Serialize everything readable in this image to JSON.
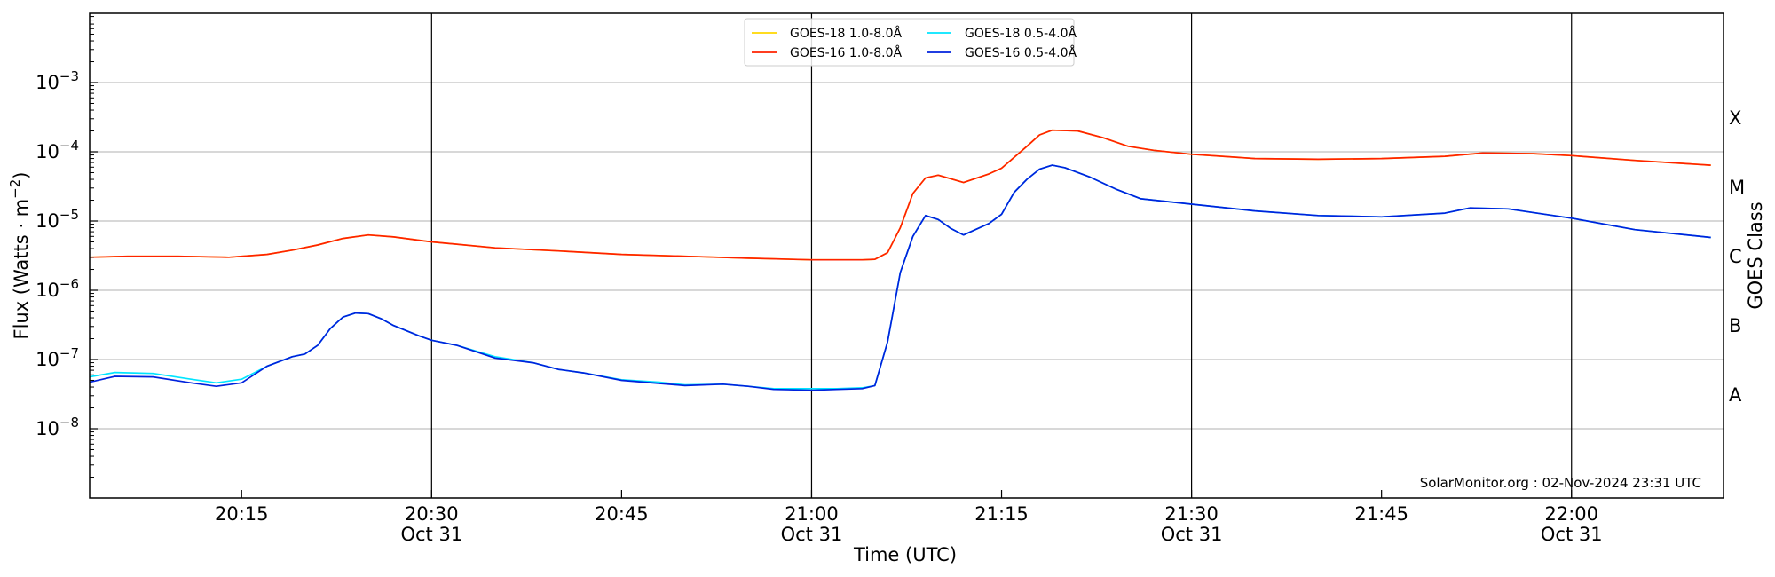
{
  "chart_data": {
    "type": "line",
    "xlabel": "Time (UTC)",
    "ylabel": "Flux (Watts · m⁻²)",
    "y2label": "GOES Class",
    "yscale": "log",
    "ylim": [
      1e-09,
      0.01
    ],
    "xlim": [
      "20:03",
      "22:12"
    ],
    "x_ticks": [
      {
        "time": "20:15",
        "date": ""
      },
      {
        "time": "20:30",
        "date": "Oct 31"
      },
      {
        "time": "20:45",
        "date": ""
      },
      {
        "time": "21:00",
        "date": "Oct 31"
      },
      {
        "time": "21:15",
        "date": ""
      },
      {
        "time": "21:30",
        "date": "Oct 31"
      },
      {
        "time": "21:45",
        "date": ""
      },
      {
        "time": "22:00",
        "date": "Oct 31"
      }
    ],
    "y_ticks": [
      {
        "value": 1e-08,
        "base": "10",
        "exp": "−8"
      },
      {
        "value": 1e-07,
        "base": "10",
        "exp": "−7"
      },
      {
        "value": 1e-06,
        "base": "10",
        "exp": "−6"
      },
      {
        "value": 1e-05,
        "base": "10",
        "exp": "−5"
      },
      {
        "value": 0.0001,
        "base": "10",
        "exp": "−4"
      },
      {
        "value": 0.001,
        "base": "10",
        "exp": "−3"
      }
    ],
    "goes_classes": [
      {
        "label": "A",
        "value": 3.16e-08
      },
      {
        "label": "B",
        "value": 3.16e-07
      },
      {
        "label": "C",
        "value": 3.16e-06
      },
      {
        "label": "M",
        "value": 3.16e-05
      },
      {
        "label": "X",
        "value": 0.000316
      }
    ],
    "grid": true,
    "legend_position": "top-center",
    "annotation": "SolarMonitor.org : 02-Nov-2024 23:31 UTC",
    "series": [
      {
        "name": "GOES-18 1.0-8.0Å",
        "color": "#ffd700",
        "points": [
          [
            "20:03",
            3e-06
          ],
          [
            "20:06",
            3.1e-06
          ],
          [
            "20:10",
            3.1e-06
          ],
          [
            "20:14",
            3e-06
          ],
          [
            "20:17",
            3.3e-06
          ],
          [
            "20:19",
            3.8e-06
          ],
          [
            "20:21",
            4.5e-06
          ],
          [
            "20:23",
            5.6e-06
          ],
          [
            "20:25",
            6.3e-06
          ],
          [
            "20:27",
            5.9e-06
          ],
          [
            "20:30",
            5e-06
          ],
          [
            "20:35",
            4.1e-06
          ],
          [
            "20:40",
            3.7e-06
          ],
          [
            "20:45",
            3.3e-06
          ],
          [
            "20:50",
            3.1e-06
          ],
          [
            "20:55",
            2.9e-06
          ],
          [
            "21:00",
            2.75e-06
          ],
          [
            "21:04",
            2.75e-06
          ],
          [
            "21:05",
            2.8e-06
          ],
          [
            "21:06",
            3.5e-06
          ],
          [
            "21:07",
            8e-06
          ],
          [
            "21:08",
            2.5e-05
          ],
          [
            "21:09",
            4.2e-05
          ],
          [
            "21:10",
            4.6e-05
          ],
          [
            "21:12",
            3.6e-05
          ],
          [
            "21:14",
            4.8e-05
          ],
          [
            "21:15",
            5.8e-05
          ],
          [
            "21:17",
            0.00012
          ],
          [
            "21:18",
            0.000175
          ],
          [
            "21:19",
            0.000205
          ],
          [
            "21:21",
            0.0002
          ],
          [
            "21:23",
            0.00016
          ],
          [
            "21:25",
            0.00012
          ],
          [
            "21:27",
            0.000105
          ],
          [
            "21:30",
            9.2e-05
          ],
          [
            "21:35",
            8e-05
          ],
          [
            "21:40",
            7.8e-05
          ],
          [
            "21:45",
            8e-05
          ],
          [
            "21:50",
            8.6e-05
          ],
          [
            "21:53",
            9.6e-05
          ],
          [
            "21:57",
            9.4e-05
          ],
          [
            "22:00",
            8.8e-05
          ],
          [
            "22:05",
            7.5e-05
          ],
          [
            "22:11",
            6.4e-05
          ]
        ]
      },
      {
        "name": "GOES-16 1.0-8.0Å",
        "color": "#ff2200",
        "points": [
          [
            "20:03",
            3e-06
          ],
          [
            "20:06",
            3.1e-06
          ],
          [
            "20:10",
            3.1e-06
          ],
          [
            "20:14",
            3e-06
          ],
          [
            "20:17",
            3.3e-06
          ],
          [
            "20:19",
            3.8e-06
          ],
          [
            "20:21",
            4.5e-06
          ],
          [
            "20:23",
            5.6e-06
          ],
          [
            "20:25",
            6.3e-06
          ],
          [
            "20:27",
            5.9e-06
          ],
          [
            "20:30",
            5e-06
          ],
          [
            "20:35",
            4.1e-06
          ],
          [
            "20:40",
            3.7e-06
          ],
          [
            "20:45",
            3.3e-06
          ],
          [
            "20:50",
            3.1e-06
          ],
          [
            "20:55",
            2.9e-06
          ],
          [
            "21:00",
            2.75e-06
          ],
          [
            "21:04",
            2.75e-06
          ],
          [
            "21:05",
            2.8e-06
          ],
          [
            "21:06",
            3.5e-06
          ],
          [
            "21:07",
            8e-06
          ],
          [
            "21:08",
            2.5e-05
          ],
          [
            "21:09",
            4.2e-05
          ],
          [
            "21:10",
            4.6e-05
          ],
          [
            "21:12",
            3.6e-05
          ],
          [
            "21:14",
            4.8e-05
          ],
          [
            "21:15",
            5.8e-05
          ],
          [
            "21:17",
            0.00012
          ],
          [
            "21:18",
            0.000175
          ],
          [
            "21:19",
            0.000205
          ],
          [
            "21:21",
            0.0002
          ],
          [
            "21:23",
            0.00016
          ],
          [
            "21:25",
            0.00012
          ],
          [
            "21:27",
            0.000105
          ],
          [
            "21:30",
            9.2e-05
          ],
          [
            "21:35",
            8e-05
          ],
          [
            "21:40",
            7.8e-05
          ],
          [
            "21:45",
            8e-05
          ],
          [
            "21:50",
            8.6e-05
          ],
          [
            "21:53",
            9.6e-05
          ],
          [
            "21:57",
            9.4e-05
          ],
          [
            "22:00",
            8.8e-05
          ],
          [
            "22:05",
            7.5e-05
          ],
          [
            "22:11",
            6.4e-05
          ]
        ]
      },
      {
        "name": "GOES-18 0.5-4.0Å",
        "color": "#00e5ff",
        "points": [
          [
            "20:03",
            5.6e-08
          ],
          [
            "20:05",
            6.5e-08
          ],
          [
            "20:08",
            6.3e-08
          ],
          [
            "20:11",
            5.2e-08
          ],
          [
            "20:13",
            4.6e-08
          ],
          [
            "20:15",
            5.2e-08
          ],
          [
            "20:17",
            8e-08
          ],
          [
            "20:19",
            1.1e-07
          ],
          [
            "20:20",
            1.2e-07
          ],
          [
            "20:21",
            1.6e-07
          ],
          [
            "20:22",
            2.8e-07
          ],
          [
            "20:23",
            4.1e-07
          ],
          [
            "20:24",
            4.7e-07
          ],
          [
            "20:25",
            4.6e-07
          ],
          [
            "20:26",
            3.9e-07
          ],
          [
            "20:27",
            3.1e-07
          ],
          [
            "20:29",
            2.2e-07
          ],
          [
            "20:30",
            1.9e-07
          ],
          [
            "20:32",
            1.6e-07
          ],
          [
            "20:35",
            1.1e-07
          ],
          [
            "20:38",
            9e-08
          ],
          [
            "20:40",
            7.2e-08
          ],
          [
            "20:42",
            6.4e-08
          ],
          [
            "20:45",
            5.1e-08
          ],
          [
            "20:48",
            4.7e-08
          ],
          [
            "20:50",
            4.3e-08
          ],
          [
            "20:53",
            4.4e-08
          ],
          [
            "20:55",
            4.1e-08
          ],
          [
            "20:57",
            3.8e-08
          ],
          [
            "21:00",
            3.8e-08
          ],
          [
            "21:02",
            3.8e-08
          ],
          [
            "21:04",
            3.9e-08
          ],
          [
            "21:05",
            4.2e-08
          ],
          [
            "21:06",
            1.8e-07
          ],
          [
            "21:07",
            1.8e-06
          ],
          [
            "21:08",
            6e-06
          ],
          [
            "21:09",
            1.2e-05
          ],
          [
            "21:10",
            1.05e-05
          ],
          [
            "21:11",
            7.8e-06
          ],
          [
            "21:12",
            6.3e-06
          ],
          [
            "21:14",
            9.2e-06
          ],
          [
            "21:15",
            1.25e-05
          ],
          [
            "21:16",
            2.6e-05
          ],
          [
            "21:17",
            4e-05
          ],
          [
            "21:18",
            5.6e-05
          ],
          [
            "21:19",
            6.4e-05
          ],
          [
            "21:20",
            5.9e-05
          ],
          [
            "21:22",
            4.3e-05
          ],
          [
            "21:24",
            2.9e-05
          ],
          [
            "21:26",
            2.1e-05
          ],
          [
            "21:30",
            1.75e-05
          ],
          [
            "21:35",
            1.4e-05
          ],
          [
            "21:40",
            1.2e-05
          ],
          [
            "21:45",
            1.15e-05
          ],
          [
            "21:50",
            1.3e-05
          ],
          [
            "21:52",
            1.55e-05
          ],
          [
            "21:55",
            1.5e-05
          ],
          [
            "22:00",
            1.1e-05
          ],
          [
            "22:05",
            7.5e-06
          ],
          [
            "22:11",
            5.8e-06
          ]
        ]
      },
      {
        "name": "GOES-16 0.5-4.0Å",
        "color": "#0022dd",
        "points": [
          [
            "20:03",
            4.7e-08
          ],
          [
            "20:05",
            5.7e-08
          ],
          [
            "20:08",
            5.6e-08
          ],
          [
            "20:11",
            4.6e-08
          ],
          [
            "20:13",
            4.1e-08
          ],
          [
            "20:15",
            4.6e-08
          ],
          [
            "20:17",
            8e-08
          ],
          [
            "20:19",
            1.1e-07
          ],
          [
            "20:20",
            1.2e-07
          ],
          [
            "20:21",
            1.6e-07
          ],
          [
            "20:22",
            2.8e-07
          ],
          [
            "20:23",
            4.1e-07
          ],
          [
            "20:24",
            4.7e-07
          ],
          [
            "20:25",
            4.6e-07
          ],
          [
            "20:26",
            3.9e-07
          ],
          [
            "20:27",
            3.1e-07
          ],
          [
            "20:29",
            2.2e-07
          ],
          [
            "20:30",
            1.9e-07
          ],
          [
            "20:32",
            1.6e-07
          ],
          [
            "20:35",
            1.05e-07
          ],
          [
            "20:38",
            9e-08
          ],
          [
            "20:40",
            7.2e-08
          ],
          [
            "20:42",
            6.4e-08
          ],
          [
            "20:45",
            5e-08
          ],
          [
            "20:48",
            4.5e-08
          ],
          [
            "20:50",
            4.2e-08
          ],
          [
            "20:53",
            4.4e-08
          ],
          [
            "20:55",
            4.1e-08
          ],
          [
            "20:57",
            3.7e-08
          ],
          [
            "21:00",
            3.6e-08
          ],
          [
            "21:02",
            3.7e-08
          ],
          [
            "21:04",
            3.8e-08
          ],
          [
            "21:05",
            4.2e-08
          ],
          [
            "21:06",
            1.8e-07
          ],
          [
            "21:07",
            1.8e-06
          ],
          [
            "21:08",
            6e-06
          ],
          [
            "21:09",
            1.2e-05
          ],
          [
            "21:10",
            1.05e-05
          ],
          [
            "21:11",
            7.8e-06
          ],
          [
            "21:12",
            6.3e-06
          ],
          [
            "21:14",
            9.2e-06
          ],
          [
            "21:15",
            1.25e-05
          ],
          [
            "21:16",
            2.6e-05
          ],
          [
            "21:17",
            4e-05
          ],
          [
            "21:18",
            5.6e-05
          ],
          [
            "21:19",
            6.4e-05
          ],
          [
            "21:20",
            5.9e-05
          ],
          [
            "21:22",
            4.3e-05
          ],
          [
            "21:24",
            2.9e-05
          ],
          [
            "21:26",
            2.1e-05
          ],
          [
            "21:30",
            1.75e-05
          ],
          [
            "21:35",
            1.4e-05
          ],
          [
            "21:40",
            1.2e-05
          ],
          [
            "21:45",
            1.15e-05
          ],
          [
            "21:50",
            1.3e-05
          ],
          [
            "21:52",
            1.55e-05
          ],
          [
            "21:55",
            1.5e-05
          ],
          [
            "22:00",
            1.1e-05
          ],
          [
            "22:05",
            7.5e-06
          ],
          [
            "22:11",
            5.8e-06
          ]
        ]
      }
    ]
  }
}
